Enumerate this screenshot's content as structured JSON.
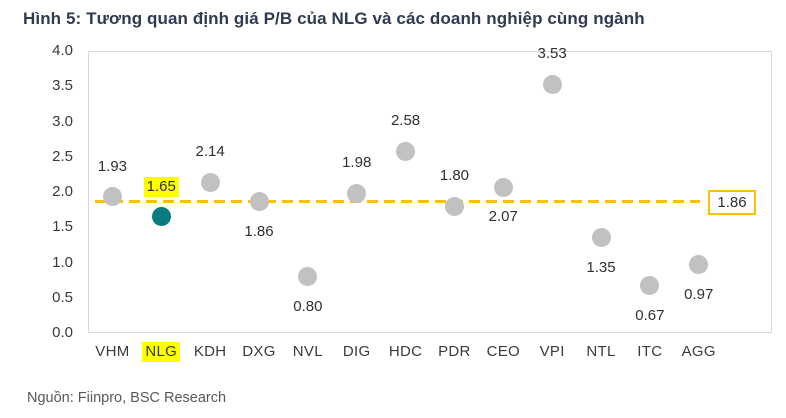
{
  "title": "Hình 5: Tương quan định giá P/B của NLG và các doanh nghiệp cùng ngành",
  "source": "Nguồn: Fiinpro, BSC Research",
  "chart_data": {
    "type": "scatter",
    "title": "Hình 5: Tương quan định giá P/B của NLG và các doanh nghiệp cùng ngành",
    "categories": [
      "VHM",
      "NLG",
      "KDH",
      "DXG",
      "NVL",
      "DIG",
      "HDC",
      "PDR",
      "CEO",
      "VPI",
      "NTL",
      "ITC",
      "AGG"
    ],
    "values": [
      1.93,
      1.65,
      2.14,
      1.86,
      0.8,
      1.98,
      2.58,
      1.8,
      2.07,
      3.53,
      1.35,
      0.67,
      0.97
    ],
    "labels": [
      "1.93",
      "1.65",
      "2.14",
      "1.86",
      "0.80",
      "1.98",
      "2.58",
      "1.80",
      "2.07",
      "3.53",
      "1.35",
      "0.67",
      "0.97"
    ],
    "label_positions": [
      "above",
      "above",
      "above",
      "below",
      "below",
      "above",
      "above",
      "above",
      "below",
      "above",
      "below",
      "below",
      "below"
    ],
    "highlight_category": "NLG",
    "reference_line": {
      "value": 1.86,
      "label": "1.86",
      "style": "dashed"
    },
    "xlabel": "",
    "ylabel": "",
    "ylim": [
      0.0,
      4.0
    ],
    "yticks": [
      "0.0",
      "0.5",
      "1.0",
      "1.5",
      "2.0",
      "2.5",
      "3.0",
      "3.5",
      "4.0"
    ],
    "grid": false,
    "legend": null,
    "colors": {
      "point": "#c1c1c1",
      "highlight_point": "#0a7c80",
      "reference_line": "#ffc000",
      "label_highlight": "#ffff00",
      "title": "#2e3b52",
      "axis_text": "#3b3b3b",
      "source_text": "#58595b",
      "plot_border": "#d9d9d9"
    }
  }
}
